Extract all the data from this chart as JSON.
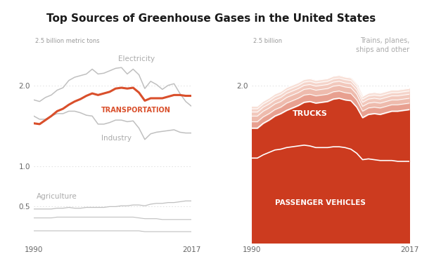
{
  "title": "Top Sources of Greenhouse Gases in the United States",
  "years": [
    1990,
    1991,
    1992,
    1993,
    1994,
    1995,
    1996,
    1997,
    1998,
    1999,
    2000,
    2001,
    2002,
    2003,
    2004,
    2005,
    2006,
    2007,
    2008,
    2009,
    2010,
    2011,
    2012,
    2013,
    2014,
    2015,
    2016,
    2017
  ],
  "electricity": [
    1.82,
    1.8,
    1.85,
    1.88,
    1.94,
    1.97,
    2.06,
    2.1,
    2.12,
    2.14,
    2.2,
    2.14,
    2.15,
    2.18,
    2.21,
    2.22,
    2.14,
    2.2,
    2.13,
    1.96,
    2.05,
    2.01,
    1.95,
    2.0,
    2.02,
    1.9,
    1.8,
    1.74
  ],
  "transportation": [
    1.53,
    1.52,
    1.57,
    1.62,
    1.68,
    1.71,
    1.76,
    1.8,
    1.83,
    1.87,
    1.9,
    1.88,
    1.9,
    1.92,
    1.96,
    1.97,
    1.96,
    1.97,
    1.91,
    1.81,
    1.84,
    1.84,
    1.84,
    1.86,
    1.88,
    1.88,
    1.87,
    1.87
  ],
  "industry": [
    1.62,
    1.58,
    1.58,
    1.62,
    1.65,
    1.65,
    1.68,
    1.68,
    1.66,
    1.63,
    1.62,
    1.52,
    1.52,
    1.54,
    1.57,
    1.57,
    1.55,
    1.56,
    1.47,
    1.33,
    1.4,
    1.42,
    1.43,
    1.44,
    1.45,
    1.42,
    1.41,
    1.41
  ],
  "agriculture": [
    0.47,
    0.47,
    0.47,
    0.47,
    0.48,
    0.48,
    0.49,
    0.48,
    0.48,
    0.49,
    0.49,
    0.49,
    0.49,
    0.5,
    0.5,
    0.51,
    0.51,
    0.52,
    0.52,
    0.51,
    0.53,
    0.54,
    0.54,
    0.55,
    0.55,
    0.56,
    0.57,
    0.57
  ],
  "other1": [
    0.36,
    0.36,
    0.36,
    0.36,
    0.37,
    0.37,
    0.37,
    0.37,
    0.37,
    0.37,
    0.37,
    0.37,
    0.37,
    0.37,
    0.37,
    0.37,
    0.37,
    0.37,
    0.36,
    0.35,
    0.35,
    0.35,
    0.34,
    0.34,
    0.34,
    0.34,
    0.34,
    0.34
  ],
  "other2": [
    0.2,
    0.2,
    0.2,
    0.2,
    0.2,
    0.2,
    0.2,
    0.2,
    0.2,
    0.2,
    0.2,
    0.2,
    0.2,
    0.2,
    0.2,
    0.2,
    0.2,
    0.2,
    0.2,
    0.19,
    0.19,
    0.19,
    0.19,
    0.19,
    0.19,
    0.19,
    0.19,
    0.19
  ],
  "passenger_vehicles": [
    1.1,
    1.1,
    1.14,
    1.17,
    1.2,
    1.21,
    1.23,
    1.24,
    1.25,
    1.26,
    1.25,
    1.23,
    1.23,
    1.23,
    1.24,
    1.24,
    1.23,
    1.21,
    1.16,
    1.08,
    1.09,
    1.08,
    1.07,
    1.07,
    1.07,
    1.06,
    1.06,
    1.06
  ],
  "trucks": [
    0.37,
    0.37,
    0.39,
    0.4,
    0.42,
    0.44,
    0.46,
    0.48,
    0.5,
    0.53,
    0.55,
    0.55,
    0.56,
    0.57,
    0.59,
    0.6,
    0.59,
    0.6,
    0.57,
    0.52,
    0.55,
    0.57,
    0.57,
    0.59,
    0.61,
    0.62,
    0.63,
    0.64
  ],
  "tp1": [
    0.08,
    0.08,
    0.08,
    0.08,
    0.08,
    0.08,
    0.09,
    0.09,
    0.09,
    0.09,
    0.09,
    0.09,
    0.09,
    0.09,
    0.09,
    0.09,
    0.09,
    0.09,
    0.09,
    0.08,
    0.08,
    0.08,
    0.08,
    0.08,
    0.08,
    0.08,
    0.08,
    0.08
  ],
  "tp2": [
    0.07,
    0.07,
    0.07,
    0.07,
    0.07,
    0.07,
    0.07,
    0.07,
    0.07,
    0.07,
    0.07,
    0.07,
    0.07,
    0.07,
    0.07,
    0.07,
    0.07,
    0.07,
    0.07,
    0.06,
    0.06,
    0.06,
    0.06,
    0.06,
    0.06,
    0.06,
    0.06,
    0.06
  ],
  "tp3": [
    0.05,
    0.05,
    0.05,
    0.05,
    0.05,
    0.05,
    0.05,
    0.05,
    0.05,
    0.05,
    0.05,
    0.05,
    0.05,
    0.05,
    0.05,
    0.05,
    0.05,
    0.05,
    0.05,
    0.05,
    0.05,
    0.05,
    0.05,
    0.05,
    0.05,
    0.05,
    0.05,
    0.05
  ],
  "tp4": [
    0.04,
    0.04,
    0.04,
    0.04,
    0.04,
    0.04,
    0.04,
    0.04,
    0.04,
    0.04,
    0.04,
    0.04,
    0.04,
    0.04,
    0.04,
    0.04,
    0.04,
    0.04,
    0.04,
    0.04,
    0.04,
    0.04,
    0.04,
    0.04,
    0.04,
    0.04,
    0.04,
    0.04
  ],
  "tp5": [
    0.03,
    0.03,
    0.03,
    0.03,
    0.03,
    0.03,
    0.03,
    0.03,
    0.03,
    0.03,
    0.03,
    0.03,
    0.03,
    0.03,
    0.03,
    0.03,
    0.03,
    0.03,
    0.03,
    0.03,
    0.03,
    0.03,
    0.03,
    0.03,
    0.03,
    0.03,
    0.03,
    0.03
  ],
  "color_transport": "#d94f2b",
  "color_grey_line": "#c0c0c0",
  "color_grey_dark": "#aaaaaa",
  "color_passenger": "#cc3b1f",
  "color_trucks_fill": "#cc3b1f",
  "color_tp_base": "#e8998a",
  "background": "#ffffff",
  "title_fontsize": 11,
  "ylim_left": [
    0.05,
    2.65
  ],
  "ylim_right": [
    0.05,
    2.65
  ]
}
